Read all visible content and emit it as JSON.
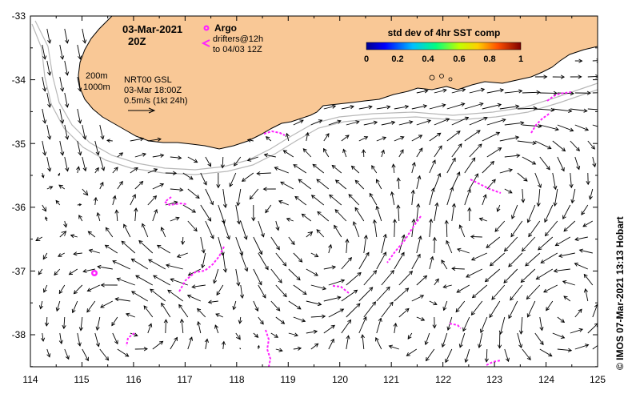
{
  "map": {
    "date": "03-Mar-2021",
    "time": "20Z",
    "legend": {
      "argo_label": "Argo",
      "drifters_line1": "drifters@12h",
      "drifters_line2": "to 04/03 12Z"
    },
    "colorbar": {
      "title": "std dev of 4hr SST comp",
      "ticks": [
        "0",
        "0.2",
        "0.4",
        "0.6",
        "0.8",
        "1"
      ]
    },
    "isobaths": [
      "200m",
      "1000m"
    ],
    "product": "NRT00 GSL",
    "product_time": "03-Mar 18:00Z",
    "scale_label": "0.5m/s (1kt 24h)",
    "credit": "© IMOS 07-Mar-2021 13:13 Hobart",
    "lat_ticks": [
      "-33",
      "-34",
      "-35",
      "-36",
      "-37",
      "-38"
    ],
    "lon_ticks": [
      "114",
      "115",
      "116",
      "117",
      "118",
      "119",
      "120",
      "121",
      "122",
      "123",
      "124",
      "125"
    ],
    "colors": {
      "land": "#f9c896",
      "coast": "#000000",
      "isobath": "#b8b8b8",
      "drifter": "#ff22ff",
      "arrow": "#000000"
    }
  }
}
